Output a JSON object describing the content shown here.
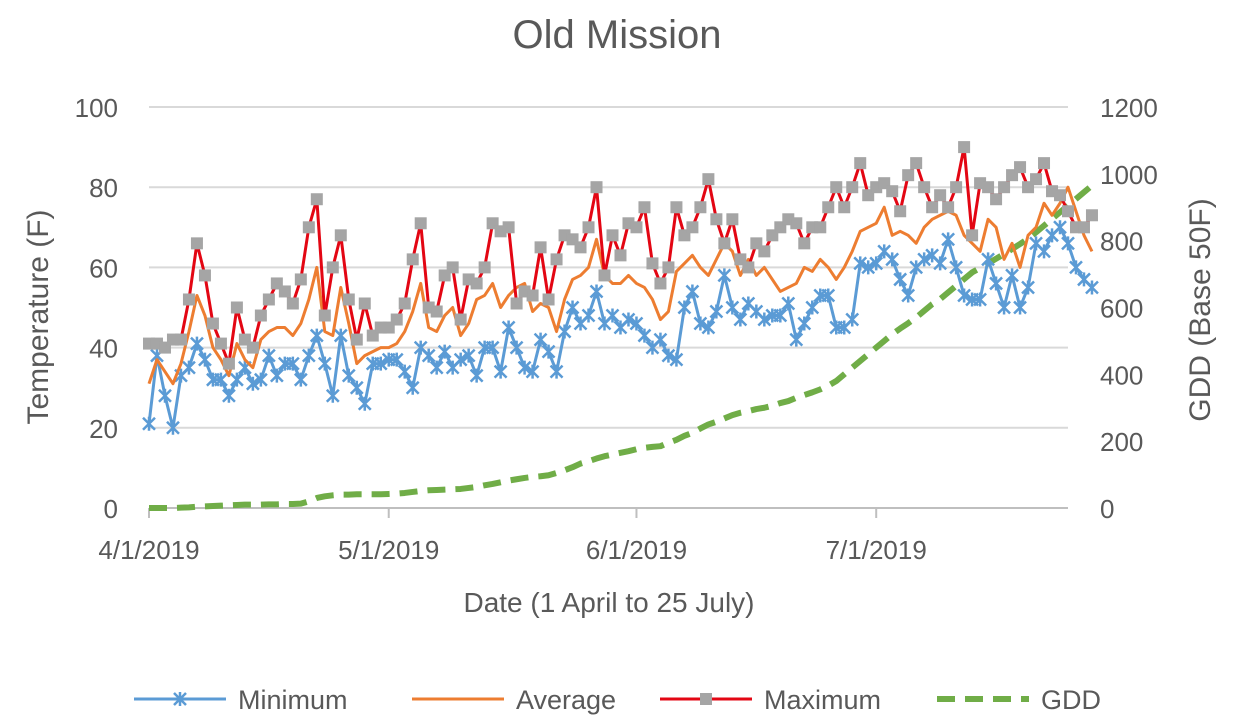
{
  "chart_data": {
    "type": "line",
    "title": "Old Mission",
    "xlabel": "Date (1 April to 25 July)",
    "ylabel": "Temperature (F)",
    "y2label": "GDD (Base 50F)",
    "ylim": [
      0,
      100
    ],
    "y2lim": [
      0,
      1200
    ],
    "yticks": [
      "0",
      "20",
      "40",
      "60",
      "80",
      "100"
    ],
    "y2ticks": [
      "0",
      "200",
      "400",
      "600",
      "800",
      "1000",
      "1200"
    ],
    "x_start": "2019-04-01",
    "x_end": "2019-07-25",
    "xtick_labels": [
      {
        "date": "2019-04-01",
        "label": "4/1/2019"
      },
      {
        "date": "2019-05-01",
        "label": "5/1/2019"
      },
      {
        "date": "2019-06-01",
        "label": "6/1/2019"
      },
      {
        "date": "2019-07-01",
        "label": "7/1/2019"
      }
    ],
    "grid": "horizontal",
    "legend_position": "bottom",
    "series": [
      {
        "name": "Minimum",
        "axis": "left",
        "color": "#5B9BD5",
        "style": "solid",
        "marker": "star",
        "values": [
          21,
          38,
          28,
          20,
          33,
          35,
          41,
          37,
          32,
          32,
          28,
          32,
          35,
          31,
          32,
          38,
          33,
          36,
          36,
          32,
          38,
          43,
          36,
          28,
          43,
          33,
          30,
          26,
          36,
          36,
          37,
          37,
          34,
          30,
          40,
          38,
          35,
          39,
          35,
          37,
          38,
          33,
          40,
          40,
          34,
          45,
          40,
          35,
          34,
          42,
          39,
          34,
          44,
          50,
          46,
          48,
          54,
          46,
          48,
          45,
          47,
          46,
          43,
          40,
          42,
          38,
          37,
          50,
          54,
          46,
          45,
          49,
          58,
          50,
          47,
          51,
          49,
          47,
          48,
          48,
          51,
          42,
          46,
          50,
          53,
          53,
          45,
          45,
          47,
          61,
          60,
          61,
          64,
          62,
          57,
          53,
          60,
          62,
          63,
          61,
          67,
          60,
          53,
          52,
          52,
          62,
          56,
          50,
          58,
          50,
          55,
          66,
          64,
          68,
          70,
          66,
          60,
          57,
          55
        ]
      },
      {
        "name": "Average",
        "axis": "left",
        "color": "#ED7D31",
        "style": "solid",
        "marker": "none",
        "values": [
          31,
          37,
          34,
          31,
          36,
          44,
          53,
          48,
          40,
          37,
          33,
          41,
          37,
          35,
          42,
          44,
          45,
          45,
          43,
          46,
          52,
          60,
          44,
          43,
          55,
          46,
          36,
          38,
          39,
          40,
          40,
          41,
          44,
          49,
          56,
          45,
          44,
          48,
          50,
          43,
          46,
          52,
          53,
          56,
          50,
          53,
          55,
          56,
          49,
          51,
          50,
          44,
          52,
          57,
          58,
          60,
          67,
          58,
          56,
          56,
          58,
          56,
          55,
          52,
          47,
          49,
          59,
          61,
          63,
          60,
          58,
          62,
          66,
          64,
          58,
          62,
          58,
          60,
          57,
          54,
          55,
          56,
          60,
          59,
          62,
          60,
          57,
          60,
          64,
          69,
          70,
          71,
          75,
          68,
          69,
          68,
          66,
          70,
          72,
          73,
          74,
          73,
          68,
          66,
          64,
          72,
          70,
          62,
          66,
          60,
          68,
          70,
          76,
          73,
          76,
          80,
          74,
          68,
          64
        ]
      },
      {
        "name": "Maximum",
        "axis": "left",
        "color": "#E30613",
        "style": "solid",
        "marker": "square",
        "values": [
          41,
          41,
          40,
          42,
          42,
          52,
          66,
          58,
          46,
          41,
          36,
          50,
          42,
          40,
          48,
          52,
          56,
          54,
          51,
          57,
          70,
          77,
          48,
          60,
          68,
          52,
          42,
          51,
          43,
          45,
          45,
          47,
          51,
          62,
          71,
          50,
          49,
          58,
          60,
          47,
          57,
          56,
          60,
          71,
          69,
          70,
          51,
          54,
          53,
          65,
          52,
          62,
          68,
          67,
          65,
          70,
          80,
          58,
          68,
          63,
          71,
          70,
          75,
          61,
          56,
          60,
          75,
          68,
          70,
          75,
          82,
          72,
          66,
          72,
          62,
          60,
          66,
          64,
          68,
          70,
          72,
          71,
          66,
          70,
          70,
          75,
          80,
          75,
          80,
          86,
          78,
          80,
          81,
          79,
          74,
          83,
          86,
          80,
          75,
          78,
          75,
          80,
          90,
          68,
          81,
          80,
          77,
          80,
          83,
          85,
          80,
          82,
          86,
          79,
          78,
          74,
          70,
          70,
          73
        ]
      },
      {
        "name": "GDD",
        "axis": "right",
        "color": "#70AD47",
        "style": "dashed",
        "marker": "none",
        "values": [
          0,
          0,
          0,
          0,
          1,
          2,
          4,
          5,
          6,
          7,
          8,
          9,
          10,
          10,
          10,
          11,
          11,
          12,
          12,
          13,
          20,
          30,
          35,
          38,
          40,
          40,
          41,
          41,
          41,
          41,
          42,
          43,
          45,
          48,
          51,
          53,
          54,
          55,
          56,
          57,
          60,
          63,
          68,
          72,
          77,
          82,
          86,
          90,
          93,
          95,
          98,
          105,
          113,
          122,
          133,
          140,
          148,
          155,
          160,
          165,
          170,
          176,
          180,
          183,
          185,
          195,
          204,
          216,
          225,
          238,
          250,
          258,
          268,
          278,
          285,
          290,
          296,
          300,
          306,
          314,
          320,
          330,
          338,
          346,
          355,
          366,
          380,
          400,
          420,
          440,
          460,
          480,
          500,
          520,
          537,
          553,
          570,
          590,
          610,
          625,
          645,
          665,
          685,
          705,
          718,
          732,
          746,
          760,
          775,
          790,
          806,
          825,
          845,
          865,
          885,
          905,
          925,
          945,
          965
        ]
      }
    ]
  }
}
